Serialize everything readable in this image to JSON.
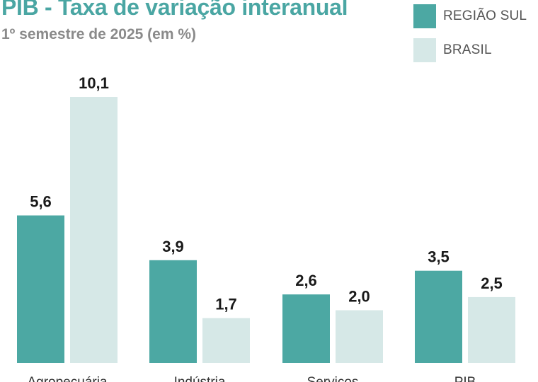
{
  "colors": {
    "title": "#4aa6a3",
    "regiao_sul": "#4ca8a3",
    "brasil": "#d6e8e7"
  },
  "chart_data": {
    "type": "bar",
    "title": "PIB - Taxa de variação interanual",
    "subtitle": "1º semestre de 2025 (em %)",
    "categories": [
      "Agropecuária",
      "Indústria",
      "Serviços",
      "PIB"
    ],
    "series": [
      {
        "name": "REGIÃO SUL",
        "values": [
          5.6,
          3.9,
          2.6,
          3.5
        ],
        "value_labels": [
          "5,6",
          "3,9",
          "2,6",
          "3,5"
        ]
      },
      {
        "name": "BRASIL",
        "values": [
          10.1,
          1.7,
          2.0,
          2.5
        ],
        "value_labels": [
          "10,1",
          "1,7",
          "2,0",
          "2,5"
        ]
      }
    ],
    "ylim": [
      0,
      10.1
    ],
    "grid": false,
    "legend": "top-right",
    "xlabel": "",
    "ylabel": ""
  }
}
